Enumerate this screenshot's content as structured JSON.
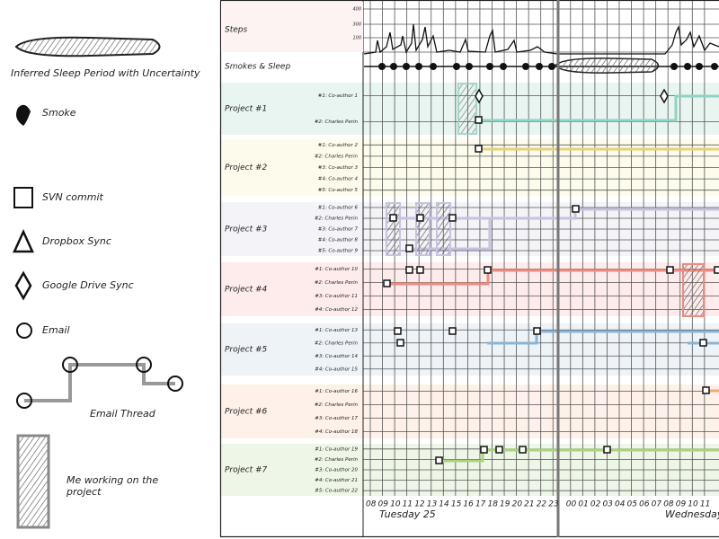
{
  "legend": {
    "items": [
      "Inferred Sleep Period with Uncertainty",
      "Smoke",
      "SVN commit",
      "Dropbox Sync",
      "Google Drive Sync",
      "Email",
      "Email Thread",
      "Me working on the project"
    ]
  },
  "rows": {
    "steps": "Steps",
    "steps_ticks": [
      "400",
      "300",
      "100"
    ],
    "smokes": "Smokes & Sleep"
  },
  "projects": [
    {
      "name": "Project #1",
      "members": [
        "#1: Co-author 1",
        "#2: Charles Perin"
      ]
    },
    {
      "name": "Project #2",
      "members": [
        "#1: Co-author 2",
        "#2: Charles Perin",
        "#3: Co-author 3",
        "#4: Co-author 4",
        "#5: Co-author 5"
      ]
    },
    {
      "name": "Project #3",
      "members": [
        "#1: Co-author 6",
        "#2: Charles Perin",
        "#3: Co-author 7",
        "#4: Co-author 8",
        "#5: Co-author 9"
      ]
    },
    {
      "name": "Project #4",
      "members": [
        "#1: Co-author 10",
        "#2: Charles Perin",
        "#3: Co-author 11",
        "#4: Co-author 12"
      ]
    },
    {
      "name": "Project #5",
      "members": [
        "#1: Co-author 13",
        "#2: Charles Perin",
        "#3: Co-author 14",
        "#4: Co-author 15"
      ]
    },
    {
      "name": "Project #6",
      "members": [
        "#1: Co-author 16",
        "#2: Charles Perin",
        "#3: Co-author 17",
        "#4: Co-author 18"
      ]
    },
    {
      "name": "Project #7",
      "members": [
        "#1: Co-author 19",
        "#2: Charles Perin",
        "#3: Co-author 20",
        "#4: Co-author 21",
        "#5: Co-author 22"
      ]
    }
  ],
  "time_axis": {
    "hours": [
      "08",
      "09",
      "10",
      "11",
      "12",
      "13",
      "14",
      "15",
      "16",
      "17",
      "18",
      "19",
      "20",
      "21",
      "22",
      "23",
      "00",
      "01",
      "02",
      "03",
      "04",
      "05",
      "06",
      "07",
      "08",
      "09",
      "10",
      "11"
    ],
    "days": [
      "Tuesday 25",
      "Wednesday"
    ]
  }
}
